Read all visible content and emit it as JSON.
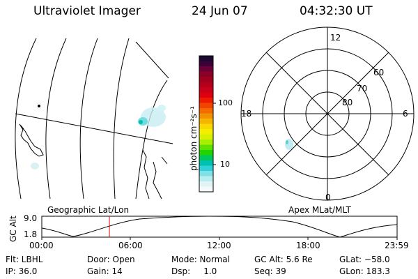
{
  "header": {
    "instrument": "Ultraviolet Imager",
    "date": "24 Jun 07",
    "time": "04:32:30 UT"
  },
  "colorbar": {
    "label": "photon cm⁻²s⁻¹",
    "ticks": [
      "100",
      "10"
    ],
    "colors_top_to_bottom": [
      "#1a0a2e",
      "#3b0038",
      "#6a0035",
      "#8c0028",
      "#a00020",
      "#b3001a",
      "#c8001a",
      "#dd0010",
      "#ee1a00",
      "#f04400",
      "#f26a00",
      "#f39200",
      "#f6b500",
      "#f8d800",
      "#f4ee00",
      "#d8f000",
      "#a8ee00",
      "#60e000",
      "#20d400",
      "#00c860",
      "#00c0b0",
      "#30d0d8",
      "#80e0e8",
      "#b8ecf0",
      "#e0f4f6",
      "#f4fafb"
    ]
  },
  "polar_plot": {
    "clock_labels": {
      "top": "12",
      "left": "18",
      "right": "6",
      "bottom": "0"
    },
    "lat_labels": [
      "60",
      "70",
      "80"
    ]
  },
  "timeline": {
    "left_label": "Geographic Lat/Lon",
    "right_label": "Apex MLat/MLT",
    "axis_title": "GC Alt",
    "y_ticks": [
      "9.0",
      "1.8"
    ],
    "x_ticks": [
      "00:00",
      "06:00",
      "12:00",
      "18:00",
      "23:59"
    ],
    "marker_time": "04:32:30"
  },
  "info": {
    "filter": "Flt: LBHL",
    "ip": "IP: 36.0",
    "door": "Door: Open",
    "gain": "Gain: 14",
    "mode": "Mode: Normal",
    "dsp": "Dsp:     1.0",
    "gc_alt": "GC Alt: 5.6 Re",
    "seq": "Seq: 39",
    "glat": "GLat: −58.0",
    "glon": "GLon: 183.3"
  }
}
